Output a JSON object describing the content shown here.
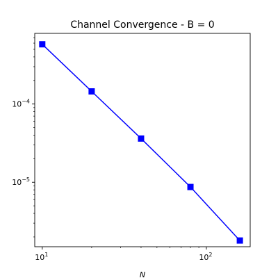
{
  "chart_data": {
    "type": "line",
    "title": "Channel Convergence - B = 0",
    "xlabel": "N",
    "ylabel": "",
    "xscale": "log",
    "yscale": "log",
    "xlim": [
      9,
      185
    ],
    "ylim": [
      1.5e-06,
      0.0008
    ],
    "grid": false,
    "x_major_ticks": [
      {
        "value": 10,
        "base": "10",
        "exp": "1"
      },
      {
        "value": 100,
        "base": "10",
        "exp": "2"
      }
    ],
    "y_major_ticks": [
      {
        "value": 1e-05,
        "base": "10",
        "exp": "−5"
      },
      {
        "value": 0.0001,
        "base": "10",
        "exp": "−4"
      }
    ],
    "series": [
      {
        "color": "#0000ff",
        "marker": "square",
        "x": [
          10,
          20,
          40,
          80,
          160
        ],
        "y": [
          0.00058,
          0.000145,
          3.62e-05,
          8.7e-06,
          1.8e-06
        ]
      }
    ]
  }
}
